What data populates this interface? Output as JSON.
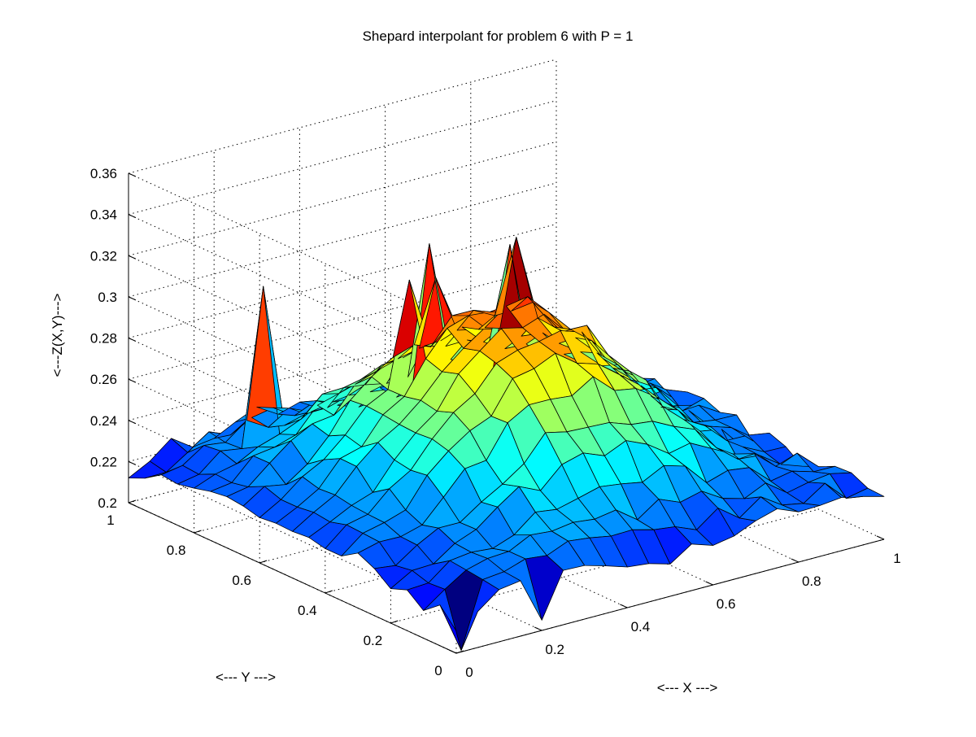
{
  "chart_data": {
    "type": "surface",
    "title": "Shepard interpolant for problem 6 with P = 1",
    "xlabel": "<--- X --->",
    "ylabel": "<--- Y --->",
    "zlabel": "<---Z(X,Y)--->",
    "xlim": [
      0,
      1
    ],
    "ylim": [
      0,
      1
    ],
    "zlim": [
      0.2,
      0.36
    ],
    "xticks": [
      "0",
      "0.2",
      "0.4",
      "0.6",
      "0.8",
      "1"
    ],
    "yticks": [
      "0",
      "0.2",
      "0.4",
      "0.6",
      "0.8",
      "1"
    ],
    "zticks": [
      "0.2",
      "0.22",
      "0.24",
      "0.26",
      "0.28",
      "0.3",
      "0.32",
      "0.34",
      "0.36"
    ],
    "grid": true,
    "colormap": "jet",
    "grid_resolution": 21,
    "surface_description": "dome-shaped surface peaking near 0.30 at the center, edges near 0.22-0.24, with sharp spikes at sample points",
    "spikes": [
      {
        "x": 0.35,
        "y": 0.6,
        "z": 0.318
      },
      {
        "x": 0.45,
        "y": 0.65,
        "z": 0.31
      },
      {
        "x": 0.6,
        "y": 0.6,
        "z": 0.325
      },
      {
        "x": 0.2,
        "y": 0.85,
        "z": 0.305
      },
      {
        "x": 0.55,
        "y": 0.8,
        "z": 0.31
      },
      {
        "x": 0.7,
        "y": 0.75,
        "z": 0.305
      },
      {
        "x": 0.0,
        "y": 1.0,
        "z": 0.212
      },
      {
        "x": 0.2,
        "y": 0.0,
        "z": 0.205
      },
      {
        "x": 0.05,
        "y": 0.05,
        "z": 0.195
      },
      {
        "x": 1.0,
        "y": 0.1,
        "z": 0.225
      },
      {
        "x": 0.95,
        "y": 0.2,
        "z": 0.23
      }
    ]
  }
}
